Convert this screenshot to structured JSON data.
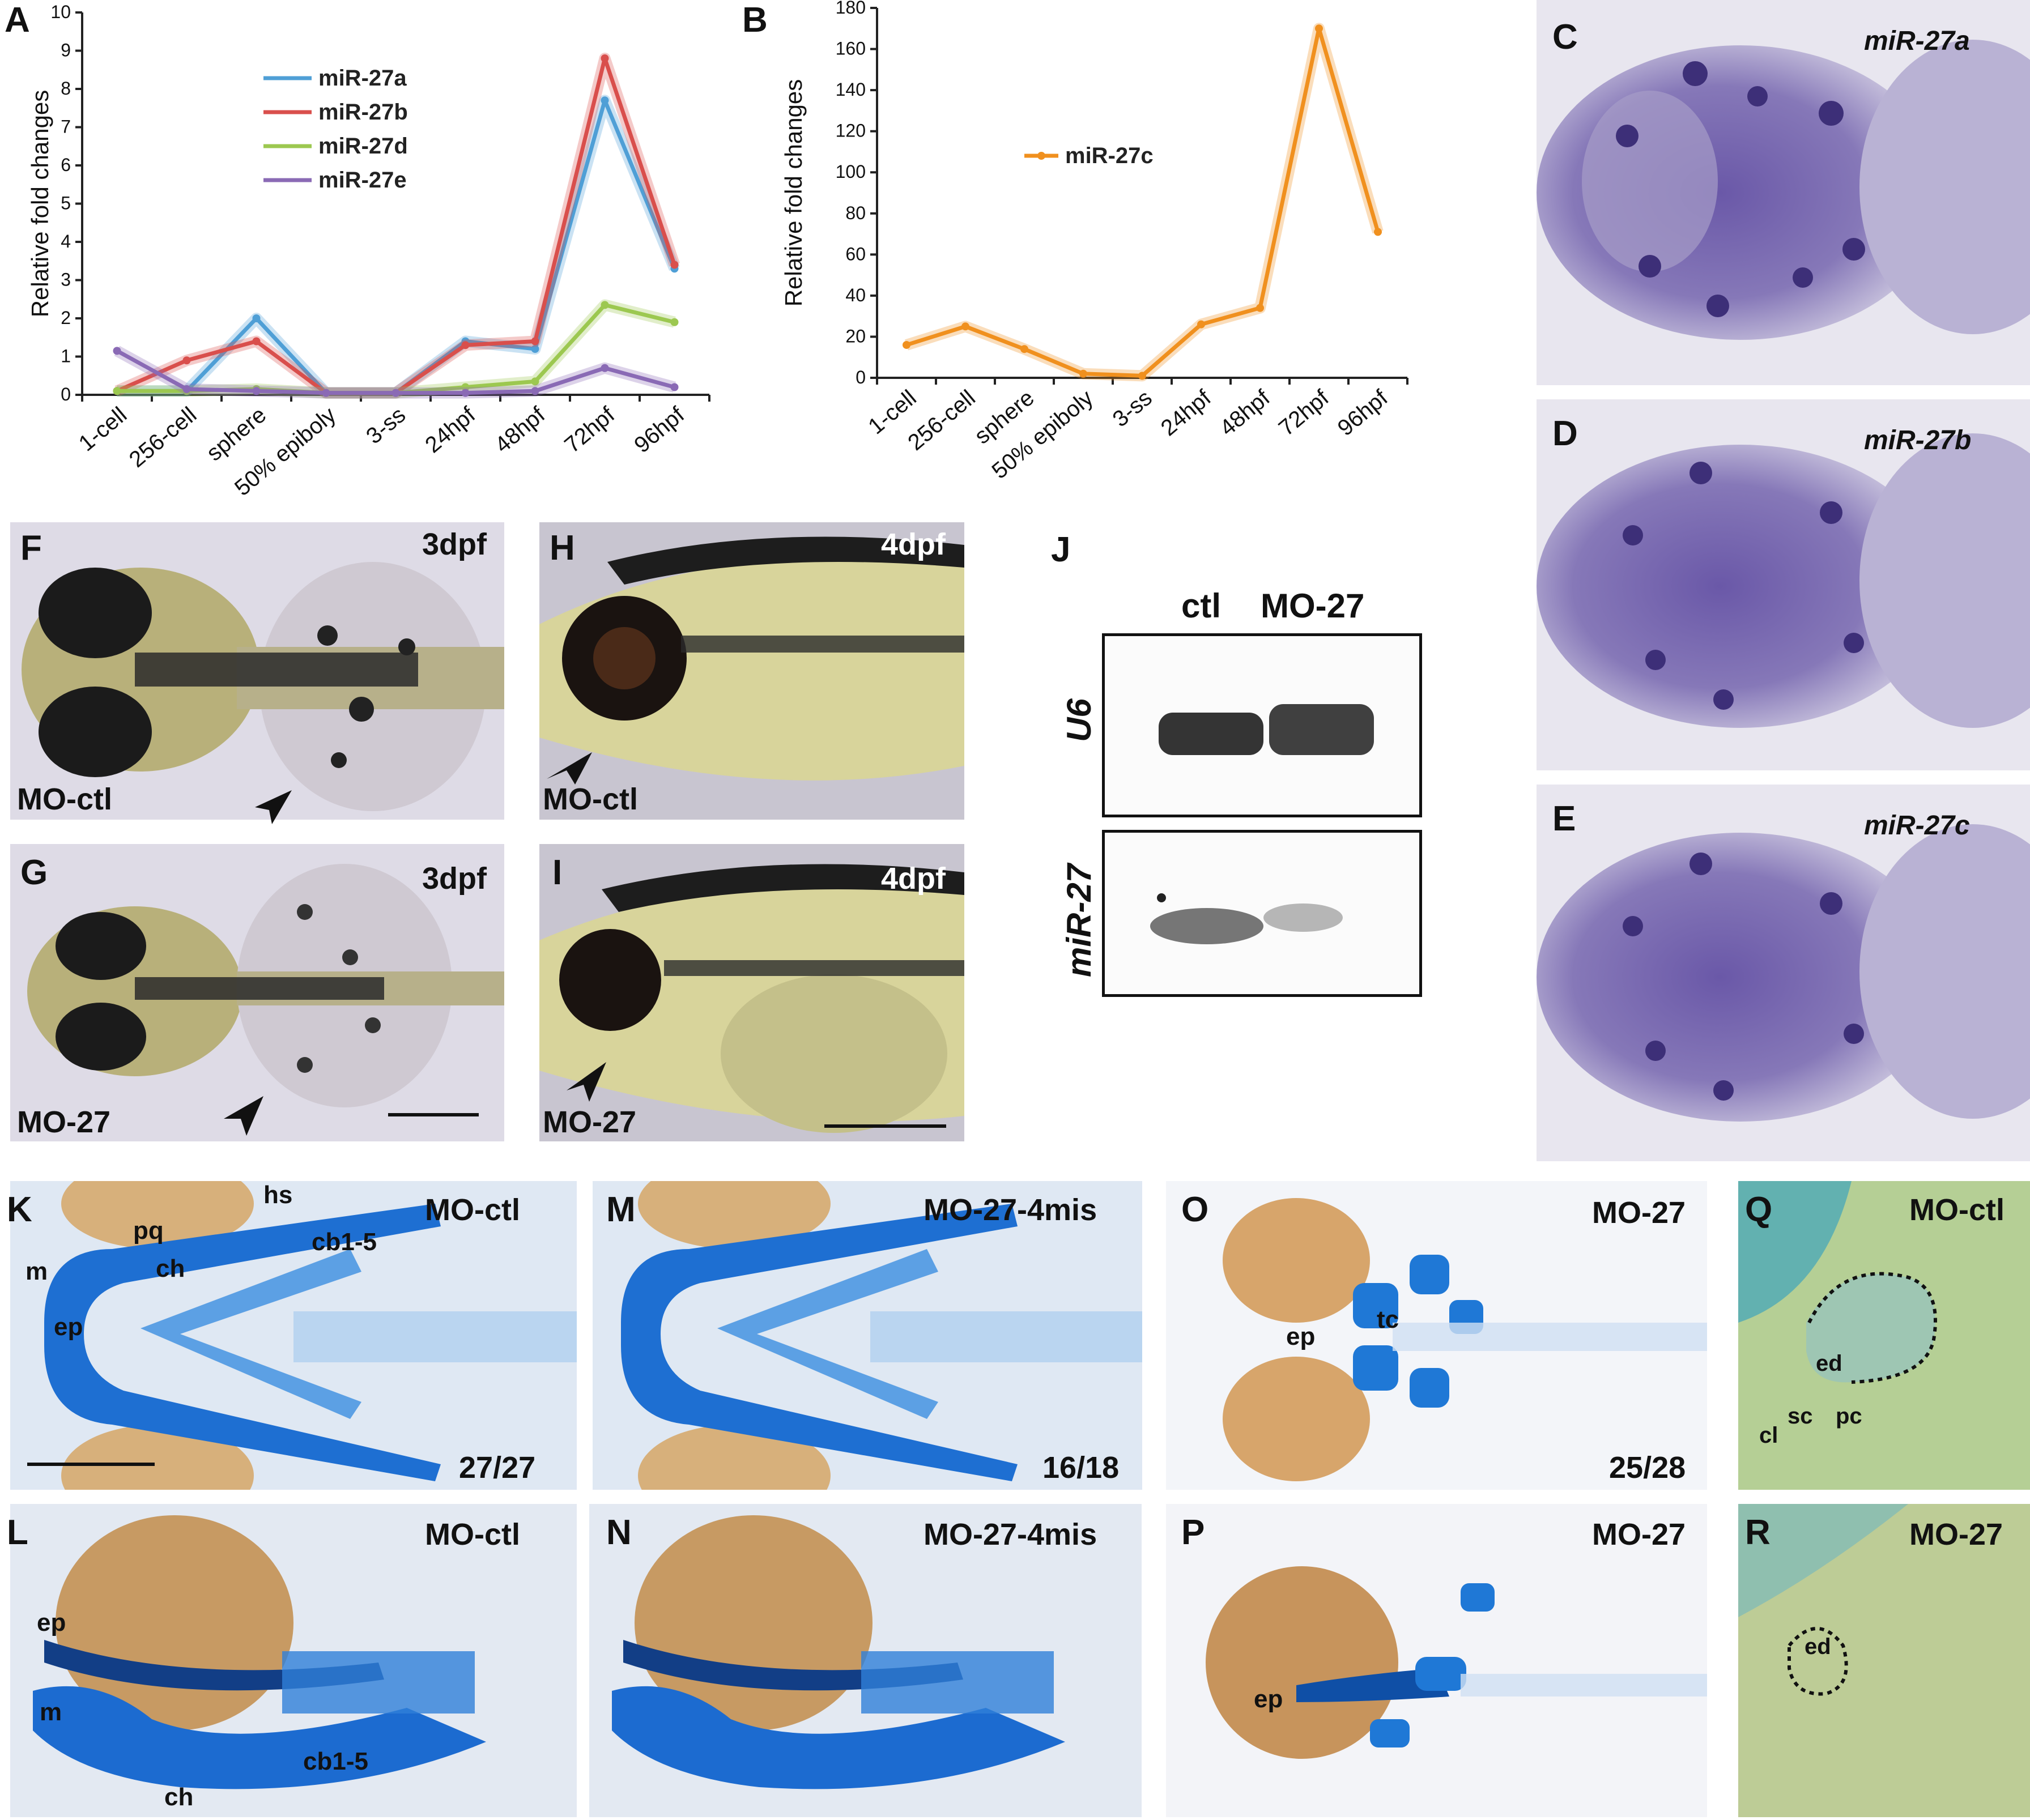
{
  "chart_data": [
    {
      "type": "line",
      "panel": "A",
      "ylabel": "Relative fold changes",
      "ylim": [
        0,
        10
      ],
      "yticks": [
        "0",
        "1",
        "2",
        "3",
        "4",
        "5",
        "6",
        "7",
        "8",
        "9",
        "10"
      ],
      "categories": [
        "1-cell",
        "256-cell",
        "sphere",
        "50% epiboly",
        "3-ss",
        "24hpf",
        "48hpf",
        "72hpf",
        "96hpf"
      ],
      "legend_placement": "top-left",
      "series": [
        {
          "name": "miR-27a",
          "color": "#4f9fd6",
          "values": [
            0.1,
            0.1,
            2.0,
            0.05,
            0.05,
            1.4,
            1.2,
            7.7,
            3.3
          ]
        },
        {
          "name": "miR-27b",
          "color": "#d94f4c",
          "values": [
            0.1,
            0.9,
            1.4,
            0.05,
            0.05,
            1.3,
            1.4,
            8.8,
            3.4
          ]
        },
        {
          "name": "miR-27d",
          "color": "#9cc850",
          "values": [
            0.1,
            0.1,
            0.15,
            0.05,
            0.05,
            0.2,
            0.35,
            2.35,
            1.9
          ]
        },
        {
          "name": "miR-27e",
          "color": "#8a6ab5",
          "values": [
            1.15,
            0.15,
            0.1,
            0.05,
            0.05,
            0.05,
            0.1,
            0.7,
            0.2
          ]
        }
      ]
    },
    {
      "type": "line",
      "panel": "B",
      "ylabel": "Relative fold changes",
      "ylim": [
        0,
        180
      ],
      "yticks": [
        "0",
        "20",
        "40",
        "60",
        "80",
        "100",
        "120",
        "140",
        "160",
        "180"
      ],
      "categories": [
        "1-cell",
        "256-cell",
        "sphere",
        "50% epiboly",
        "3-ss",
        "24hpf",
        "48hpf",
        "72hpf",
        "96hpf"
      ],
      "legend_placement": "top-left",
      "series": [
        {
          "name": "miR-27c",
          "color": "#f0901e",
          "values": [
            16,
            25,
            14,
            2,
            1,
            26,
            34,
            170,
            71
          ]
        }
      ]
    }
  ],
  "panels": {
    "A": "A",
    "B": "B",
    "C": "C",
    "D": "D",
    "E": "E",
    "F": "F",
    "G": "G",
    "H": "H",
    "I": "I",
    "J": "J",
    "K": "K",
    "L": "L",
    "M": "M",
    "N": "N",
    "O": "O",
    "P": "P",
    "Q": "Q",
    "R": "R"
  },
  "insitu": {
    "C": "miR-27a",
    "D": "miR-27b",
    "E": "miR-27c"
  },
  "embryo": {
    "F_stage": "3dpf",
    "F_label": "MO-ctl",
    "G_stage": "3dpf",
    "G_label": "MO-27",
    "H_stage": "4dpf",
    "H_label": "MO-ctl",
    "I_stage": "4dpf",
    "I_label": "MO-27"
  },
  "blot": {
    "lane1": "ctl",
    "lane2": "MO-27",
    "row1": "U6",
    "row2": "miR-27"
  },
  "cartilage": {
    "K_title": "MO-ctl",
    "K_count": "27/27",
    "L_title": "MO-ctl",
    "M_title": "MO-27-4mis",
    "M_count": "16/18",
    "N_title": "MO-27-4mis",
    "O_title": "MO-27",
    "O_count": "25/28",
    "P_title": "MO-27",
    "Q_title": "MO-ctl",
    "R_title": "MO-27"
  },
  "annotations": {
    "hs": "hs",
    "pq": "pq",
    "ch": "ch",
    "m": "m",
    "ep": "ep",
    "cb": "cb1-5",
    "tc": "tc",
    "ed": "ed",
    "sc": "sc",
    "pc": "pc",
    "cl": "cl"
  }
}
